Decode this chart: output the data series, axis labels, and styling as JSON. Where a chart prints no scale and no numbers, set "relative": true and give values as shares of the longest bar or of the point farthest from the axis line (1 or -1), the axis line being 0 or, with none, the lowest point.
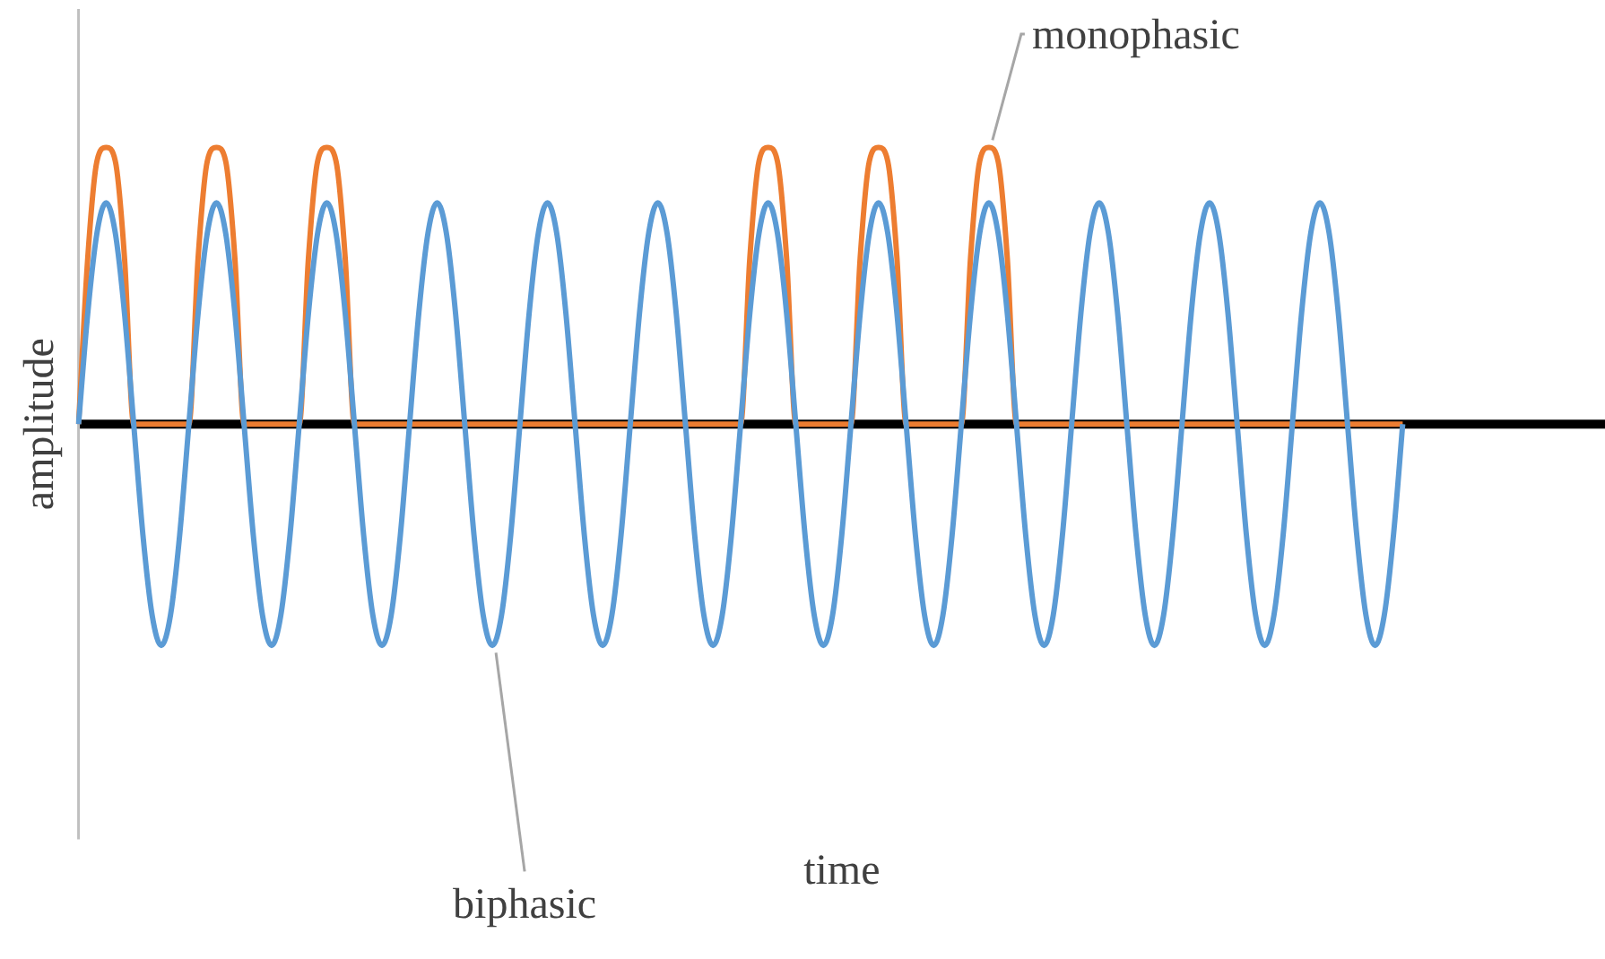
{
  "chart_data": {
    "type": "line",
    "relative": true,
    "xlabel": "time",
    "ylabel": "amplitude",
    "legend": false,
    "marker": "none",
    "line_style": "solid",
    "categories": [
      null,
      null,
      null,
      null,
      null,
      null,
      null,
      null,
      null,
      null,
      null,
      null,
      null,
      null,
      null,
      null,
      null,
      null,
      null,
      null,
      null,
      null,
      null,
      null,
      null,
      null,
      null,
      null,
      null,
      null,
      null,
      null,
      null,
      null,
      null,
      null,
      null,
      null,
      null,
      null,
      null,
      null,
      null,
      null,
      null,
      null,
      null,
      null,
      null,
      null,
      null,
      null,
      null,
      null,
      null,
      null,
      null,
      null,
      null,
      null,
      null,
      null,
      null,
      null,
      null,
      null,
      null,
      null,
      null,
      null,
      null,
      null,
      null,
      null,
      null,
      null,
      null,
      null,
      null,
      null,
      null,
      null,
      null,
      null,
      null,
      null,
      null,
      null,
      null,
      null,
      null,
      null,
      null,
      null,
      null,
      null,
      null,
      null,
      null,
      null,
      null,
      null,
      null,
      null,
      null,
      null,
      null,
      null,
      null,
      null,
      null,
      null,
      null,
      null,
      null,
      null,
      null,
      null,
      null,
      null,
      null,
      null,
      null,
      null,
      null,
      null,
      null,
      null,
      null,
      null,
      null,
      null,
      null,
      null,
      null,
      null,
      null,
      null,
      null,
      null,
      null,
      null,
      null,
      null,
      null,
      null,
      null,
      null,
      null,
      null,
      null,
      null,
      null,
      null,
      null,
      null,
      null,
      null,
      null,
      null,
      null,
      null,
      null,
      null,
      null,
      null,
      null
    ],
    "series": [
      {
        "name": "biphasic",
        "color": "#5b9bd5",
        "values": [
          0,
          0.4,
          0.69,
          0.8,
          0.69,
          0.4,
          0,
          -0.4,
          -0.69,
          -0.8,
          -0.69,
          -0.4,
          0,
          0.4,
          0.69,
          0.8,
          0.69,
          0.4,
          0,
          -0.4,
          -0.69,
          -0.8,
          -0.69,
          -0.4,
          0,
          0.4,
          0.69,
          0.8,
          0.69,
          0.4,
          0,
          -0.4,
          -0.69,
          -0.8,
          -0.69,
          -0.4,
          0,
          0.4,
          0.69,
          0.8,
          0.69,
          0.4,
          0,
          -0.4,
          -0.69,
          -0.8,
          -0.69,
          -0.4,
          0,
          0.4,
          0.69,
          0.8,
          0.69,
          0.4,
          0,
          -0.4,
          -0.69,
          -0.8,
          -0.69,
          -0.4,
          0,
          0.4,
          0.69,
          0.8,
          0.69,
          0.4,
          0,
          -0.4,
          -0.69,
          -0.8,
          -0.69,
          -0.4,
          0,
          0.4,
          0.69,
          0.8,
          0.69,
          0.4,
          0,
          -0.4,
          -0.69,
          -0.8,
          -0.69,
          -0.4,
          0,
          0.4,
          0.69,
          0.8,
          0.69,
          0.4,
          0,
          -0.4,
          -0.69,
          -0.8,
          -0.69,
          -0.4,
          0,
          0.4,
          0.69,
          0.8,
          0.69,
          0.4,
          0,
          -0.4,
          -0.69,
          -0.8,
          -0.69,
          -0.4,
          0,
          0.4,
          0.69,
          0.8,
          0.69,
          0.4,
          0,
          -0.4,
          -0.69,
          -0.8,
          -0.69,
          -0.4,
          0,
          0.4,
          0.69,
          0.8,
          0.69,
          0.4,
          0,
          -0.4,
          -0.69,
          -0.8,
          -0.69,
          -0.4,
          0,
          0.4,
          0.69,
          0.8,
          0.69,
          0.4,
          0,
          -0.4,
          -0.69,
          -0.8,
          -0.69,
          -0.4,
          0,
          null,
          null,
          null,
          null,
          null,
          null,
          null,
          null,
          null,
          null,
          null,
          null,
          null,
          null,
          null,
          null,
          null,
          null,
          null,
          null,
          null,
          null
        ]
      },
      {
        "name": "monophasic",
        "color": "#ed7d31",
        "values": [
          0,
          0.6,
          0.95,
          1,
          0.95,
          0.6,
          0,
          0,
          0,
          0,
          0,
          0,
          0,
          0.6,
          0.95,
          1,
          0.95,
          0.6,
          0,
          0,
          0,
          0,
          0,
          0,
          0,
          0.6,
          0.95,
          1,
          0.95,
          0.6,
          0,
          0,
          0,
          0,
          0,
          0,
          0,
          0,
          0,
          0,
          0,
          0,
          0,
          0,
          0,
          0,
          0,
          0,
          0,
          0,
          0,
          0,
          0,
          0,
          0,
          0,
          0,
          0,
          0,
          0,
          0,
          0,
          0,
          0,
          0,
          0,
          0,
          0,
          0,
          0,
          0,
          0,
          0,
          0.6,
          0.95,
          1,
          0.95,
          0.6,
          0,
          0,
          0,
          0,
          0,
          0,
          0,
          0.6,
          0.95,
          1,
          0.95,
          0.6,
          0,
          0,
          0,
          0,
          0,
          0,
          0,
          0.6,
          0.95,
          1,
          0.95,
          0.6,
          0,
          0,
          0,
          0,
          0,
          0,
          0,
          0,
          0,
          0,
          0,
          0,
          0,
          0,
          0,
          0,
          0,
          0,
          0,
          0,
          0,
          0,
          0,
          0,
          0,
          0,
          0,
          0,
          0,
          0,
          0,
          0,
          0,
          0,
          0,
          0,
          0,
          0,
          0,
          0,
          0,
          0,
          0,
          null,
          null,
          null,
          null,
          null,
          null,
          null,
          null,
          null,
          null,
          null,
          null,
          null,
          null,
          null,
          null,
          null,
          null,
          null,
          null,
          null,
          null
        ]
      }
    ]
  }
}
